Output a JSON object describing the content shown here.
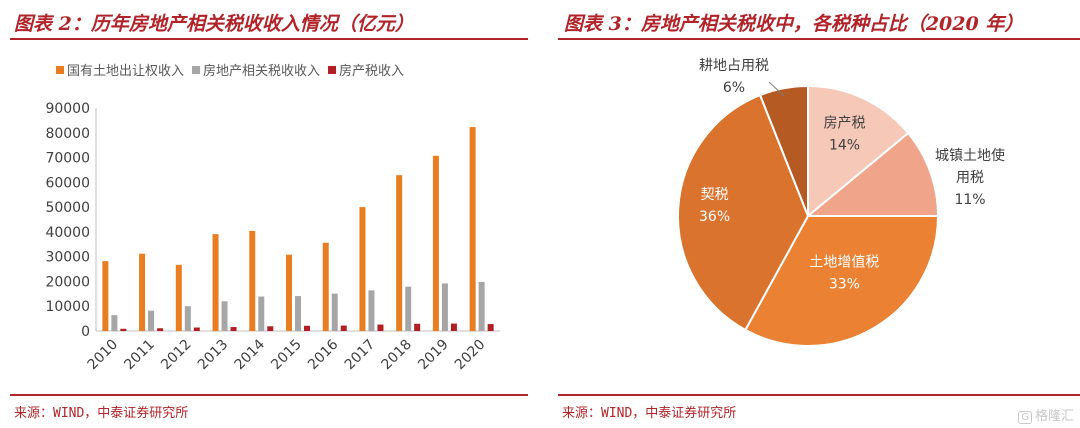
{
  "left": {
    "title": "图表 2：历年房地产相关税收收入情况（亿元）",
    "source": "来源：WIND，中泰证券研究所"
  },
  "right": {
    "title": "图表 3：房地产相关税收中，各税种占比（2020 年）",
    "source": "来源：WIND，中泰证券研究所"
  },
  "watermark": {
    "badge": "G",
    "text": "格隆汇"
  },
  "chart_data": [
    {
      "type": "bar",
      "categories": [
        "2010",
        "2011",
        "2012",
        "2013",
        "2014",
        "2015",
        "2016",
        "2017",
        "2018",
        "2019",
        "2020"
      ],
      "series": [
        {
          "name": "国有土地出让权收入",
          "color": "#e87d22",
          "values": [
            28200,
            31200,
            26700,
            39100,
            40400,
            30800,
            35600,
            50000,
            62900,
            70700,
            82300
          ]
        },
        {
          "name": "房地产相关税收收入",
          "color": "#a6a6a6",
          "values": [
            6400,
            8200,
            10000,
            12000,
            13900,
            14100,
            15100,
            16400,
            17900,
            19200,
            19800
          ]
        },
        {
          "name": "房产税收入",
          "color": "#b01f24",
          "values": [
            900,
            1100,
            1400,
            1600,
            1900,
            2100,
            2200,
            2600,
            2900,
            3000,
            2800
          ]
        }
      ],
      "ylim": [
        0,
        90000
      ],
      "yticks": [
        0,
        10000,
        20000,
        30000,
        40000,
        50000,
        60000,
        70000,
        80000,
        90000
      ],
      "legend_position": "top",
      "grid": false
    },
    {
      "type": "pie",
      "slices": [
        {
          "label": "房产税",
          "pct_label": "14%",
          "value": 14,
          "color": "#f6c8b8"
        },
        {
          "label": "城镇土地使用税",
          "label_lines": [
            "城镇土地使",
            "用税"
          ],
          "pct_label": "11%",
          "value": 11,
          "color": "#f0a48a"
        },
        {
          "label": "土地增值税",
          "pct_label": "33%",
          "value": 33,
          "color": "#ea8133"
        },
        {
          "label": "契税",
          "pct_label": "36%",
          "value": 36,
          "color": "#d9732d"
        },
        {
          "label": "耕地占用税",
          "pct_label": "6%",
          "value": 6,
          "color": "#b55a22"
        }
      ],
      "start_angle_deg": 0,
      "direction": "clockwise"
    }
  ]
}
